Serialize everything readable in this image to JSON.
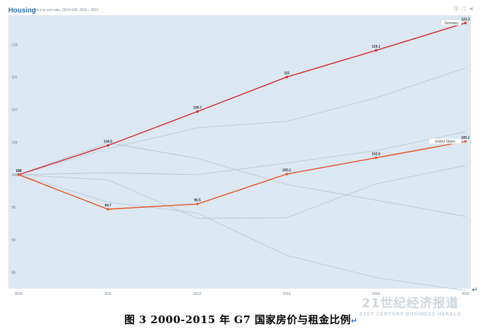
{
  "header": {
    "title": "Housing",
    "subtitle": "Price to rent ratio, 2010=100, 2010 – 2015"
  },
  "toolbar": {
    "info_icon": "info-icon",
    "expand_icon": "expand-icon",
    "share_icon": "share-icon"
  },
  "caption": "图 3   2000-2015 年 G7 国家房价与租金比例",
  "watermark": {
    "main": "21世纪经济报道",
    "sub": "21ST CENTURY BUSINESS HERALD"
  },
  "return_glyph": "↵",
  "chart_data": {
    "type": "line",
    "x": [
      "2010",
      "2011",
      "2012",
      "2013",
      "2014",
      "2015"
    ],
    "y_ticks": [
      "85",
      "90",
      "95",
      "100",
      "105",
      "110",
      "115",
      "120"
    ],
    "ylim": [
      82.5,
      124.5
    ],
    "grid": false,
    "background": "#dce8f1",
    "series": [
      {
        "name": "Germany",
        "highlight": true,
        "color": "#d81f26",
        "values": [
          100,
          104.5,
          109.7,
          115,
          119.1,
          123.3
        ],
        "labels": [
          "100",
          "104.5",
          "109.7",
          "115",
          "119.1",
          "123.3"
        ]
      },
      {
        "name": "United States",
        "highlight": true,
        "color": "#e8501f",
        "values": [
          100,
          94.7,
          95.5,
          100.1,
          102.6,
          105.1
        ],
        "labels": [
          "100",
          "94.7",
          "95.5",
          "100.1",
          "102.6",
          "105.1"
        ]
      },
      {
        "name": "",
        "highlight": false,
        "color": "#b6c3cd",
        "values": [
          100,
          104,
          107.2,
          108.2,
          111.8,
          116.4
        ]
      },
      {
        "name": "",
        "highlight": false,
        "color": "#b6c3cd",
        "values": [
          100,
          100.3,
          100,
          101.8,
          103.7,
          106.6
        ]
      },
      {
        "name": "",
        "highlight": false,
        "color": "#b6c3cd",
        "values": [
          100,
          104.9,
          102.5,
          98.5,
          96.1,
          93.6
        ]
      },
      {
        "name": "",
        "highlight": false,
        "color": "#b6c3cd",
        "values": [
          100,
          99.2,
          93.3,
          93.4,
          98.6,
          101.4
        ]
      },
      {
        "name": "",
        "highlight": false,
        "color": "#b6c3cd",
        "values": [
          100,
          95.8,
          94.1,
          87.6,
          84.2,
          82.2
        ]
      }
    ]
  }
}
